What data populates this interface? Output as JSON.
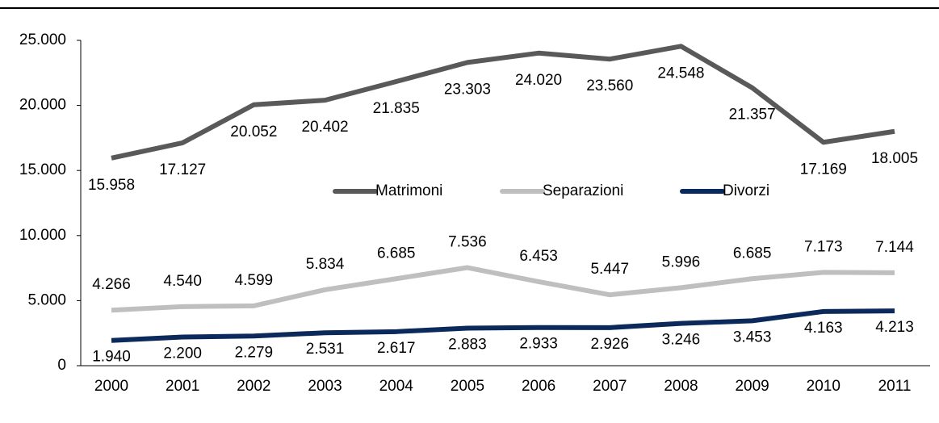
{
  "chart_data": {
    "type": "line",
    "categories": [
      "2000",
      "2001",
      "2002",
      "2003",
      "2004",
      "2005",
      "2006",
      "2007",
      "2008",
      "2009",
      "2010",
      "2011"
    ],
    "series": [
      {
        "name": "Matrimoni",
        "color": "#595959",
        "values": [
          15958,
          17127,
          20052,
          20402,
          21835,
          23303,
          24020,
          23560,
          24548,
          21357,
          17169,
          18005
        ],
        "value_labels": [
          "15.958",
          "17.127",
          "20.052",
          "20.402",
          "21.835",
          "23.303",
          "24.020",
          "23.560",
          "24.548",
          "21.357",
          "17.169",
          "18.005"
        ]
      },
      {
        "name": "Separazioni",
        "color": "#bfbfbf",
        "values": [
          4266,
          4540,
          4599,
          5834,
          6685,
          7536,
          6453,
          5447,
          5996,
          6685,
          7173,
          7144
        ],
        "value_labels": [
          "4.266",
          "4.540",
          "4.599",
          "5.834",
          "6.685",
          "7.536",
          "6.453",
          "5.447",
          "5.996",
          "6.685",
          "7.173",
          "7.144"
        ]
      },
      {
        "name": "Divorzi",
        "color": "#0b2a5b",
        "values": [
          1940,
          2200,
          2279,
          2531,
          2617,
          2883,
          2933,
          2926,
          3246,
          3453,
          4163,
          4213
        ],
        "value_labels": [
          "1.940",
          "2.200",
          "2.279",
          "2.531",
          "2.617",
          "2.883",
          "2.933",
          "2.926",
          "3.246",
          "3.453",
          "4.163",
          "4.213"
        ]
      }
    ],
    "ylim": [
      0,
      25000
    ],
    "yticks": [
      0,
      {
        "value": 5000,
        "label": "5.000"
      },
      {
        "value": 10000,
        "label": "10.000"
      },
      {
        "value": 15000,
        "label": "15.000"
      },
      {
        "value": 20000,
        "label": "20.000"
      },
      {
        "value": 25000,
        "label": "25.000"
      }
    ]
  }
}
